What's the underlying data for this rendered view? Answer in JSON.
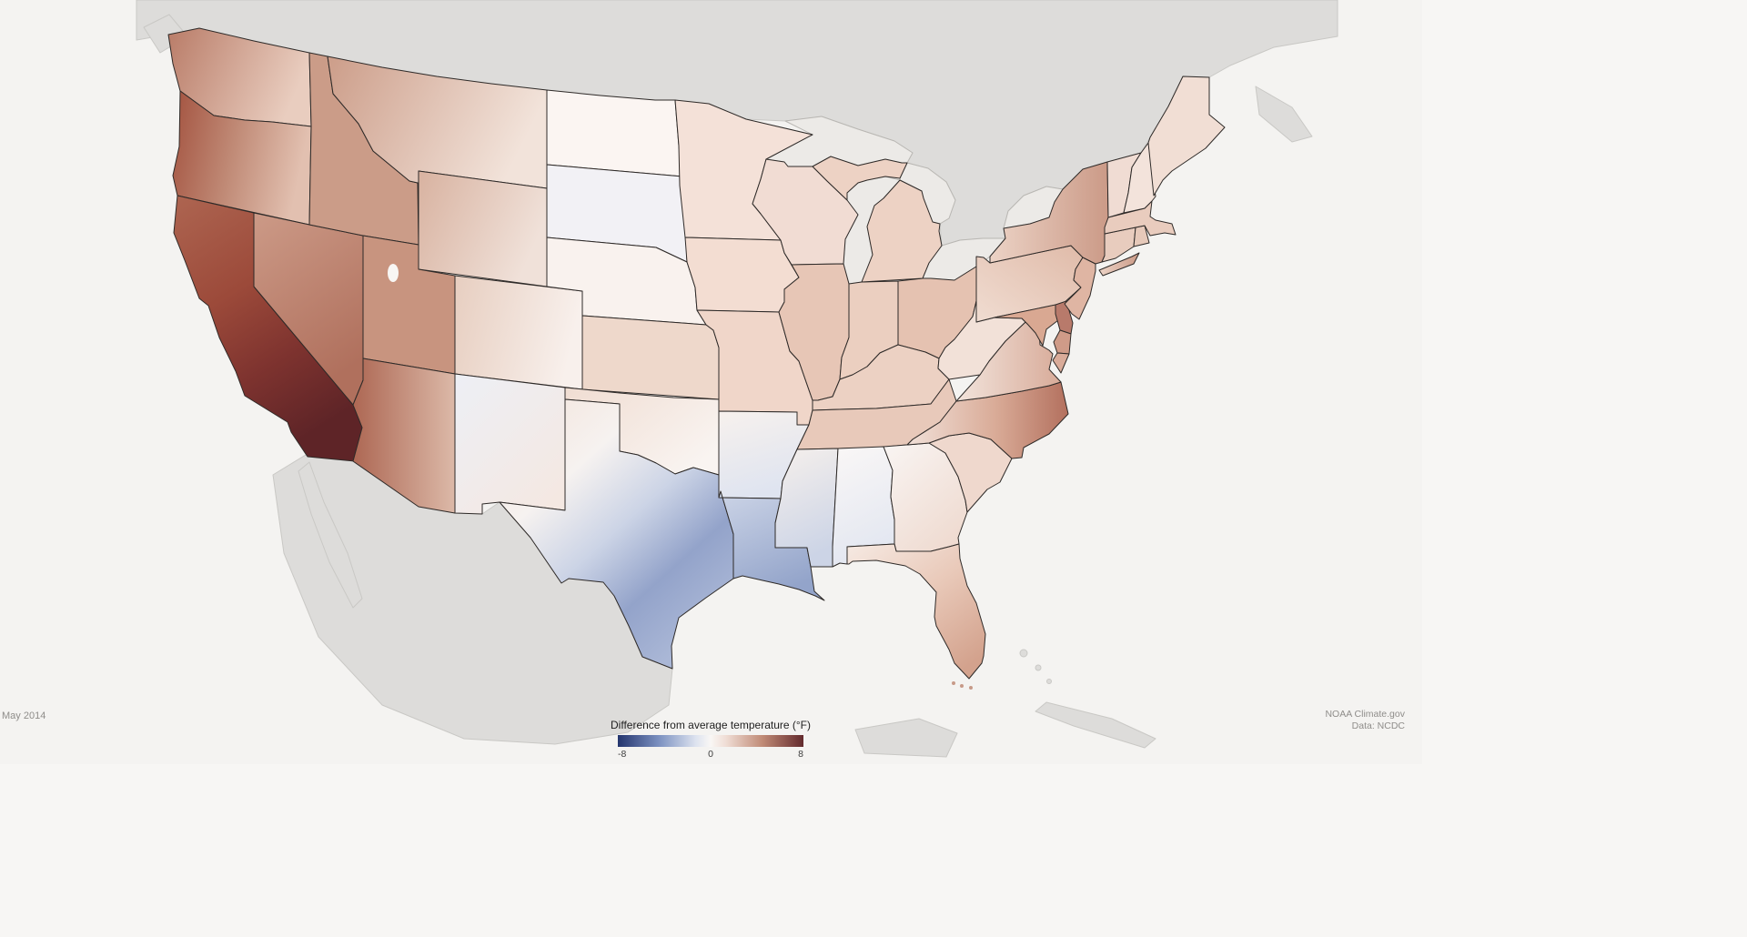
{
  "figure": {
    "date_label": "May 2014",
    "credit_line1": "NOAA Climate.gov",
    "credit_line2": "Data: NCDC"
  },
  "legend": {
    "title": "Difference from average temperature (°F)",
    "min_label": "-8",
    "mid_label": "0",
    "max_label": "8",
    "stops": [
      [
        0,
        "#24356e"
      ],
      [
        0.22,
        "#7b90c0"
      ],
      [
        0.42,
        "#dde3ef"
      ],
      [
        0.5,
        "#f9f7f5"
      ],
      [
        0.58,
        "#f0ded6"
      ],
      [
        0.78,
        "#c08a76"
      ],
      [
        1,
        "#632a2d"
      ]
    ]
  },
  "palette": {
    "ocean": "#f4f3f1",
    "neighbor_land": "#dddcda",
    "lake_water": "#eceae7",
    "salt_lake": "#f8f6f4",
    "florida_keys": "#c79a88",
    "state_border": "#2e2a28"
  },
  "map": {
    "states": [
      {
        "id": "wa",
        "name": "Washington",
        "anomaly_f": 3,
        "fill": {
          "dir": [
            0,
            0,
            1,
            0.3
          ],
          "stops": [
            [
              0,
              "#b97c68"
            ],
            [
              1,
              "#e9cdbf"
            ]
          ]
        }
      },
      {
        "id": "or",
        "name": "Oregon",
        "anomaly_f": 3.5,
        "fill": {
          "dir": [
            0,
            0,
            1,
            0.2
          ],
          "stops": [
            [
              0,
              "#a3523f"
            ],
            [
              0.5,
              "#c08a76"
            ],
            [
              1,
              "#e2c0b0"
            ]
          ]
        }
      },
      {
        "id": "ca",
        "name": "California",
        "anomaly_f": 5.5,
        "fill": {
          "dir": [
            0.05,
            0,
            0.5,
            1
          ],
          "stops": [
            [
              0,
              "#ad6450"
            ],
            [
              0.4,
              "#9c4a3a"
            ],
            [
              0.7,
              "#7e332f"
            ],
            [
              1,
              "#5e2427"
            ]
          ]
        }
      },
      {
        "id": "nv",
        "name": "Nevada",
        "anomaly_f": 3.5,
        "fill": {
          "dir": [
            0,
            0,
            0.4,
            1
          ],
          "stops": [
            [
              0,
              "#cc9a87"
            ],
            [
              1,
              "#b0705d"
            ]
          ]
        }
      },
      {
        "id": "id",
        "name": "Idaho",
        "anomaly_f": 3,
        "fill": "#cb9c88"
      },
      {
        "id": "mt",
        "name": "Montana",
        "anomaly_f": 2,
        "fill": {
          "dir": [
            0,
            0,
            1,
            0.3
          ],
          "stops": [
            [
              0,
              "#cc9d89"
            ],
            [
              1,
              "#f2e3da"
            ]
          ]
        }
      },
      {
        "id": "wy",
        "name": "Wyoming",
        "anomaly_f": 1.5,
        "fill": {
          "dir": [
            0,
            0,
            1,
            0.4
          ],
          "stops": [
            [
              0,
              "#d8b2a0"
            ],
            [
              1,
              "#f0e1d9"
            ]
          ]
        }
      },
      {
        "id": "ut",
        "name": "Utah",
        "anomaly_f": 3,
        "fill": "#c8947f"
      },
      {
        "id": "az",
        "name": "Arizona",
        "anomaly_f": 3.5,
        "fill": {
          "dir": [
            0,
            0.5,
            1,
            0.5
          ],
          "stops": [
            [
              0,
              "#ad6753"
            ],
            [
              1,
              "#dcb9a8"
            ]
          ]
        }
      },
      {
        "id": "co",
        "name": "Colorado",
        "anomaly_f": 1,
        "fill": {
          "dir": [
            0,
            0,
            1,
            0.2
          ],
          "stops": [
            [
              0,
              "#e7cec0"
            ],
            [
              1,
              "#f8f0ec"
            ]
          ]
        }
      },
      {
        "id": "nm",
        "name": "New Mexico",
        "anomaly_f": 0.5,
        "fill": {
          "dir": [
            0,
            0,
            0.8,
            1
          ],
          "stops": [
            [
              0,
              "#edeff5"
            ],
            [
              1,
              "#f4e8e2"
            ]
          ]
        }
      },
      {
        "id": "nd",
        "name": "North Dakota",
        "anomaly_f": 0.5,
        "fill": "#fbf5f2"
      },
      {
        "id": "sd",
        "name": "South Dakota",
        "anomaly_f": 0,
        "fill": "#f2f1f5"
      },
      {
        "id": "ne",
        "name": "Nebraska",
        "anomaly_f": 0.5,
        "fill": "#f9f2ee"
      },
      {
        "id": "ks",
        "name": "Kansas",
        "anomaly_f": 1.5,
        "fill": "#eed8cb"
      },
      {
        "id": "ok",
        "name": "Oklahoma",
        "anomaly_f": 1,
        "fill": {
          "dir": [
            0,
            0,
            1,
            0.7
          ],
          "stops": [
            [
              0,
              "#f0ddd2"
            ],
            [
              1,
              "#f9f4f1"
            ]
          ]
        }
      },
      {
        "id": "tx",
        "name": "Texas",
        "anomaly_f": -2,
        "fill": {
          "dir": [
            0.1,
            0,
            0.8,
            0.9
          ],
          "stops": [
            [
              0,
              "#f3e5dd"
            ],
            [
              0.3,
              "#f6f2f0"
            ],
            [
              0.55,
              "#ccd4e6"
            ],
            [
              0.78,
              "#93a3ca"
            ],
            [
              1,
              "#aab7d6"
            ]
          ]
        }
      },
      {
        "id": "mn",
        "name": "Minnesota",
        "anomaly_f": 1,
        "fill": "#f4e1d8"
      },
      {
        "id": "ia",
        "name": "Iowa",
        "anomaly_f": 1,
        "fill": "#f3ddd2"
      },
      {
        "id": "mo",
        "name": "Missouri",
        "anomaly_f": 1.5,
        "fill": "#f0d6c9"
      },
      {
        "id": "ar",
        "name": "Arkansas",
        "anomaly_f": -0.5,
        "fill": {
          "dir": [
            0,
            0,
            0.3,
            1
          ],
          "stops": [
            [
              0,
              "#f7f1ed"
            ],
            [
              1,
              "#dfe4f0"
            ]
          ]
        }
      },
      {
        "id": "la",
        "name": "Louisiana",
        "anomaly_f": -3,
        "fill": {
          "dir": [
            0,
            0,
            0.4,
            1
          ],
          "stops": [
            [
              0,
              "#cdd5e7"
            ],
            [
              1,
              "#93a4ca"
            ]
          ]
        }
      },
      {
        "id": "wi",
        "name": "Wisconsin",
        "anomaly_f": 1,
        "fill": "#f1dcd3"
      },
      {
        "id": "mi",
        "name": "Michigan",
        "anomaly_f": 1.5,
        "fill": "#edd2c4"
      },
      {
        "id": "il",
        "name": "Illinois",
        "anomaly_f": 2,
        "fill": "#e7c6b6"
      },
      {
        "id": "in",
        "name": "Indiana",
        "anomaly_f": 1.5,
        "fill": "#ebcfc0"
      },
      {
        "id": "oh",
        "name": "Ohio",
        "anomaly_f": 2,
        "fill": "#e5c2b1"
      },
      {
        "id": "ky",
        "name": "Kentucky",
        "anomaly_f": 1.5,
        "fill": "#ecd1c3"
      },
      {
        "id": "tn",
        "name": "Tennessee",
        "anomaly_f": 2,
        "fill": "#e8c9ba"
      },
      {
        "id": "ms",
        "name": "Mississippi",
        "anomaly_f": -1,
        "fill": {
          "dir": [
            0,
            0,
            0.25,
            1
          ],
          "stops": [
            [
              0,
              "#f6f0ec"
            ],
            [
              1,
              "#ccd4e6"
            ]
          ]
        }
      },
      {
        "id": "al",
        "name": "Alabama",
        "anomaly_f": -0.5,
        "fill": {
          "dir": [
            0,
            0,
            0.25,
            1
          ],
          "stops": [
            [
              0,
              "#faf7f6"
            ],
            [
              1,
              "#e3e7f1"
            ]
          ]
        }
      },
      {
        "id": "ga",
        "name": "Georgia",
        "anomaly_f": 0.5,
        "fill": {
          "dir": [
            0,
            0,
            0.7,
            1
          ],
          "stops": [
            [
              0,
              "#f9f5f3"
            ],
            [
              1,
              "#efdbd1"
            ]
          ]
        }
      },
      {
        "id": "fl",
        "name": "Florida",
        "anomaly_f": 2.5,
        "fill": {
          "dir": [
            0,
            0,
            0.75,
            1
          ],
          "stops": [
            [
              0,
              "#f6eae3"
            ],
            [
              0.5,
              "#e9c9b9"
            ],
            [
              1,
              "#d3a28d"
            ]
          ]
        }
      },
      {
        "id": "sc",
        "name": "South Carolina",
        "anomaly_f": 1.5,
        "fill": "#efd8cd"
      },
      {
        "id": "nc",
        "name": "North Carolina",
        "anomaly_f": 3,
        "fill": {
          "dir": [
            0,
            0.5,
            1,
            0.5
          ],
          "stops": [
            [
              0,
              "#f1e0d8"
            ],
            [
              0.55,
              "#d9ab97"
            ],
            [
              1,
              "#b3705e"
            ]
          ]
        }
      },
      {
        "id": "va",
        "name": "Virginia",
        "anomaly_f": 2,
        "fill": {
          "dir": [
            0,
            0.5,
            1,
            0.5
          ],
          "stops": [
            [
              0,
              "#f2e4dc"
            ],
            [
              1,
              "#d8ab99"
            ]
          ]
        }
      },
      {
        "id": "wv",
        "name": "West Virginia",
        "anomaly_f": 1,
        "fill": "#f2e1d8"
      },
      {
        "id": "pa",
        "name": "Pennsylvania",
        "anomaly_f": 1.5,
        "fill": {
          "dir": [
            0,
            1,
            1,
            0
          ],
          "stops": [
            [
              0,
              "#f0dcd1"
            ],
            [
              1,
              "#e0bba9"
            ]
          ]
        }
      },
      {
        "id": "ny",
        "name": "New York",
        "anomaly_f": 2.5,
        "fill": {
          "dir": [
            0,
            0.5,
            1,
            0.5
          ],
          "stops": [
            [
              0,
              "#ecd3c6"
            ],
            [
              1,
              "#cb9a87"
            ]
          ]
        }
      },
      {
        "id": "nj",
        "name": "New Jersey",
        "anomaly_f": 2.5,
        "fill": "#dfb5a3"
      },
      {
        "id": "de",
        "name": "Delaware",
        "anomaly_f": 3.5,
        "fill": "#b87a6b"
      },
      {
        "id": "md",
        "name": "Maryland",
        "anomaly_f": 2.5,
        "fill": "#d9a892"
      },
      {
        "id": "mdes",
        "name": "Maryland Eastern Shore",
        "anomaly_f": 2.5,
        "fill": "#cf9b88"
      },
      {
        "id": "vaes",
        "name": "Virginia Eastern Shore",
        "anomaly_f": 2,
        "fill": "#d9ab99"
      },
      {
        "id": "vt",
        "name": "Vermont",
        "anomaly_f": 1,
        "fill": "#f0dcd3"
      },
      {
        "id": "nh",
        "name": "New Hampshire",
        "anomaly_f": 1,
        "fill": "#f3e3db"
      },
      {
        "id": "me",
        "name": "Maine",
        "anomaly_f": 1,
        "fill": "#f1ded4"
      },
      {
        "id": "ma",
        "name": "Massachusetts",
        "anomaly_f": 2,
        "fill": "#e9ccbe"
      },
      {
        "id": "ct",
        "name": "Connecticut",
        "anomaly_f": 2,
        "fill": "#e8ccbe"
      },
      {
        "id": "ri",
        "name": "Rhode Island",
        "anomaly_f": 2,
        "fill": "#e6c9ba"
      }
    ]
  }
}
